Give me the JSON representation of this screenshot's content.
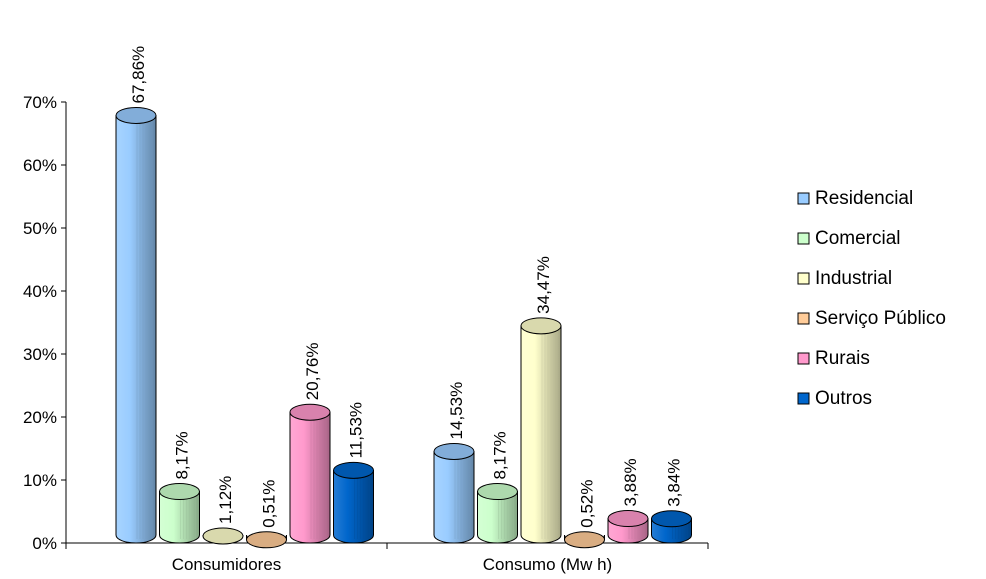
{
  "chart_data": {
    "type": "bar",
    "categories": [
      "Consumidores",
      "Consumo (Mw h)"
    ],
    "series": [
      {
        "name": "Residencial",
        "values": [
          67.86,
          14.53
        ],
        "labels": [
          "67,86%",
          "14,53%"
        ],
        "color": "#99CCFF"
      },
      {
        "name": "Comercial",
        "values": [
          8.17,
          8.17
        ],
        "labels": [
          "8,17%",
          "8,17%"
        ],
        "color": "#CCFFCC"
      },
      {
        "name": "Industrial",
        "values": [
          1.12,
          34.47
        ],
        "labels": [
          "1,12%",
          "34,47%"
        ],
        "color": "#FFFFCC"
      },
      {
        "name": "Serviço Público",
        "values": [
          0.51,
          0.52
        ],
        "labels": [
          "0,51%",
          "0,52%"
        ],
        "color": "#FFCC99"
      },
      {
        "name": "Rurais",
        "values": [
          20.76,
          3.88
        ],
        "labels": [
          "20,76%",
          "3,88%"
        ],
        "color": "#FF99CC"
      },
      {
        "name": "Outros",
        "values": [
          11.53,
          3.84
        ],
        "labels": [
          "11,53%",
          "3,84%"
        ],
        "color": "#0066CC"
      }
    ],
    "yticks": [
      "0%",
      "10%",
      "20%",
      "30%",
      "40%",
      "50%",
      "60%",
      "70%"
    ],
    "ylim": [
      0,
      70
    ],
    "legend_position": "right",
    "grid": false,
    "style": "3d-cylinder"
  }
}
